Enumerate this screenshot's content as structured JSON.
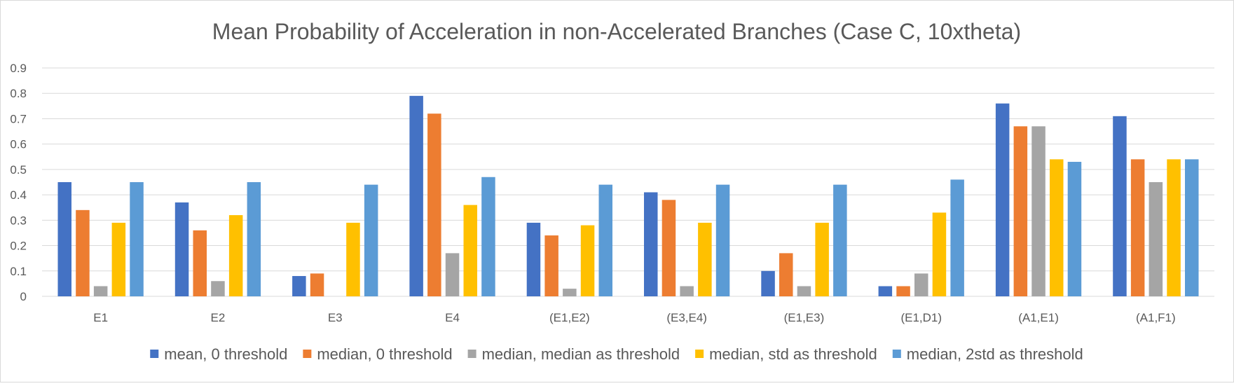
{
  "chart_data": {
    "type": "bar",
    "title": "Mean Probability of Acceleration in non-Accelerated Branches (Case C, 10xtheta)",
    "xlabel": "",
    "ylabel": "",
    "ylim": [
      0,
      0.9
    ],
    "yticks": [
      "0",
      "0.1",
      "0.2",
      "0.3",
      "0.4",
      "0.5",
      "0.6",
      "0.7",
      "0.8",
      "0.9"
    ],
    "grid": "horizontal",
    "legend_position": "bottom",
    "categories": [
      "E1",
      "E2",
      "E3",
      "E4",
      "(E1,E2)",
      "(E3,E4)",
      "(E1,E3)",
      "(E1,D1)",
      "(A1,E1)",
      "(A1,F1)"
    ],
    "series": [
      {
        "name": "mean, 0 threshold",
        "color": "#4472C4",
        "values": [
          0.45,
          0.37,
          0.08,
          0.79,
          0.29,
          0.41,
          0.1,
          0.04,
          0.76,
          0.71
        ]
      },
      {
        "name": "median, 0 threshold",
        "color": "#ED7D31",
        "values": [
          0.34,
          0.26,
          0.09,
          0.72,
          0.24,
          0.38,
          0.17,
          0.04,
          0.67,
          0.54
        ]
      },
      {
        "name": "median, median as threshold",
        "color": "#A5A5A5",
        "values": [
          0.04,
          0.06,
          0.0,
          0.17,
          0.03,
          0.04,
          0.04,
          0.09,
          0.67,
          0.45
        ]
      },
      {
        "name": "median, std as threshold",
        "color": "#FFC000",
        "values": [
          0.29,
          0.32,
          0.29,
          0.36,
          0.28,
          0.29,
          0.29,
          0.33,
          0.54,
          0.54
        ]
      },
      {
        "name": "median, 2std as threshold",
        "color": "#5B9BD5",
        "values": [
          0.45,
          0.45,
          0.44,
          0.47,
          0.44,
          0.44,
          0.44,
          0.46,
          0.53,
          0.54
        ]
      }
    ]
  }
}
